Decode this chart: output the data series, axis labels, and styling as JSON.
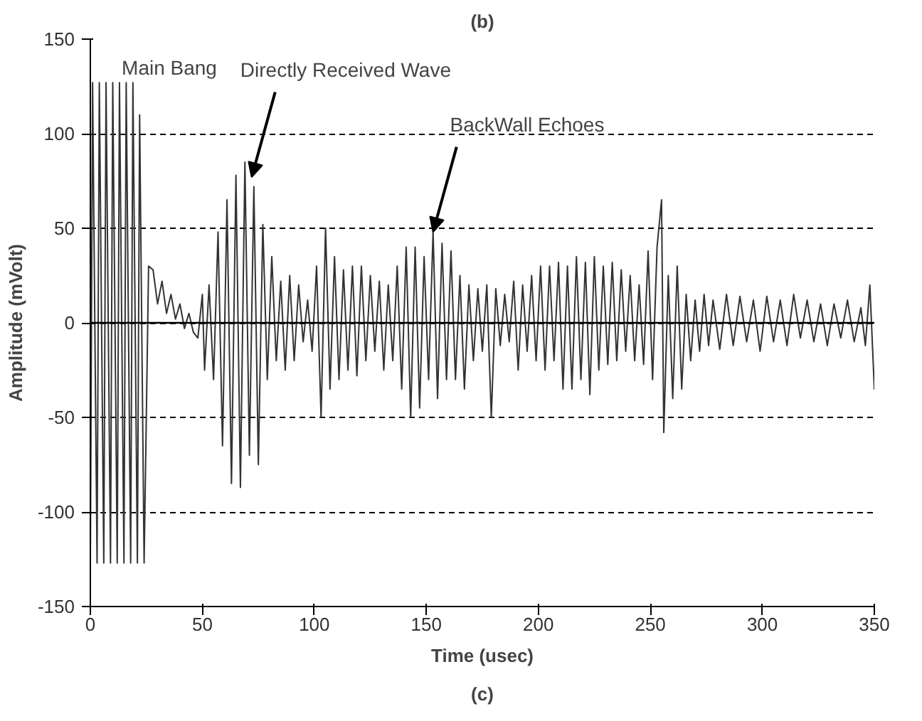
{
  "chart_data": {
    "type": "line",
    "xlabel": "Time (usec)",
    "ylabel": "Amplitude (mVolt)",
    "xlim": [
      0,
      350
    ],
    "ylim": [
      -150,
      150
    ],
    "xticks": [
      0,
      50,
      100,
      150,
      200,
      250,
      300,
      350
    ],
    "yticks": [
      -150,
      -100,
      -50,
      0,
      50,
      100,
      150
    ],
    "grid": "y",
    "line_style": "solid",
    "ref_lines": [
      {
        "axis": "y",
        "value": 0,
        "color": "#000000",
        "line_style": "solid"
      }
    ],
    "series": [
      {
        "color": "#333333",
        "x": [
          0,
          1,
          3,
          4,
          6,
          7,
          9,
          10,
          12,
          13,
          15,
          16,
          18,
          19,
          21,
          22,
          24,
          26,
          28,
          30,
          32,
          34,
          36,
          38,
          40,
          42,
          44,
          46,
          48,
          50,
          51,
          53,
          55,
          57,
          59,
          61,
          63,
          65,
          67,
          69,
          71,
          73,
          75,
          77,
          79,
          81,
          83,
          85,
          87,
          89,
          91,
          93,
          95,
          97,
          99,
          101,
          103,
          105,
          107,
          109,
          111,
          113,
          115,
          117,
          119,
          121,
          123,
          125,
          127,
          129,
          131,
          133,
          135,
          137,
          139,
          141,
          143,
          145,
          147,
          149,
          151,
          153,
          155,
          157,
          159,
          161,
          163,
          165,
          167,
          169,
          171,
          173,
          175,
          177,
          179,
          181,
          183,
          185,
          187,
          189,
          191,
          193,
          195,
          197,
          199,
          201,
          203,
          205,
          207,
          209,
          211,
          213,
          215,
          217,
          219,
          221,
          223,
          225,
          227,
          229,
          231,
          233,
          235,
          237,
          239,
          241,
          243,
          245,
          247,
          249,
          251,
          253,
          255,
          256,
          258,
          260,
          262,
          264,
          266,
          268,
          270,
          272,
          274,
          276,
          278,
          281,
          284,
          287,
          290,
          293,
          296,
          299,
          302,
          305,
          308,
          311,
          314,
          317,
          320,
          323,
          326,
          329,
          332,
          335,
          338,
          341,
          344,
          346,
          348,
          350
        ],
        "values": [
          -127,
          127,
          -127,
          127,
          -127,
          127,
          -127,
          127,
          -127,
          127,
          -127,
          127,
          -127,
          127,
          -127,
          110,
          -127,
          30,
          28,
          10,
          22,
          5,
          15,
          2,
          10,
          -3,
          5,
          -5,
          -8,
          15,
          -25,
          20,
          -30,
          48,
          -65,
          65,
          -85,
          78,
          -87,
          85,
          -70,
          72,
          -75,
          52,
          -30,
          35,
          -20,
          22,
          -25,
          25,
          -20,
          20,
          -10,
          12,
          -15,
          30,
          -50,
          50,
          -35,
          35,
          -30,
          28,
          -25,
          30,
          -28,
          30,
          -20,
          25,
          -15,
          22,
          -25,
          20,
          -20,
          30,
          -35,
          40,
          -50,
          40,
          -45,
          35,
          -30,
          48,
          -40,
          42,
          -30,
          38,
          -30,
          25,
          -35,
          20,
          -20,
          18,
          -15,
          20,
          -50,
          18,
          -12,
          15,
          -10,
          22,
          -25,
          20,
          -15,
          25,
          -20,
          30,
          -25,
          30,
          -20,
          32,
          -35,
          30,
          -35,
          35,
          -30,
          32,
          -38,
          35,
          -25,
          30,
          -22,
          32,
          -20,
          28,
          -15,
          25,
          -20,
          20,
          -22,
          38,
          -30,
          40,
          65,
          -58,
          25,
          -40,
          30,
          -35,
          15,
          -20,
          12,
          -15,
          15,
          -12,
          12,
          -14,
          15,
          -12,
          14,
          -10,
          12,
          -15,
          14,
          -10,
          12,
          -12,
          15,
          -8,
          12,
          -10,
          10,
          -12,
          10,
          -8,
          12,
          -10,
          8,
          -12,
          20,
          -35
        ]
      }
    ],
    "annotations": [
      "(b)",
      "Main Bang",
      {
        "text": "Directly Received Wave",
        "x": 72,
        "y": 77
      },
      {
        "text": "BackWall Echoes",
        "x": 153,
        "y": 48
      },
      "(c)"
    ]
  }
}
